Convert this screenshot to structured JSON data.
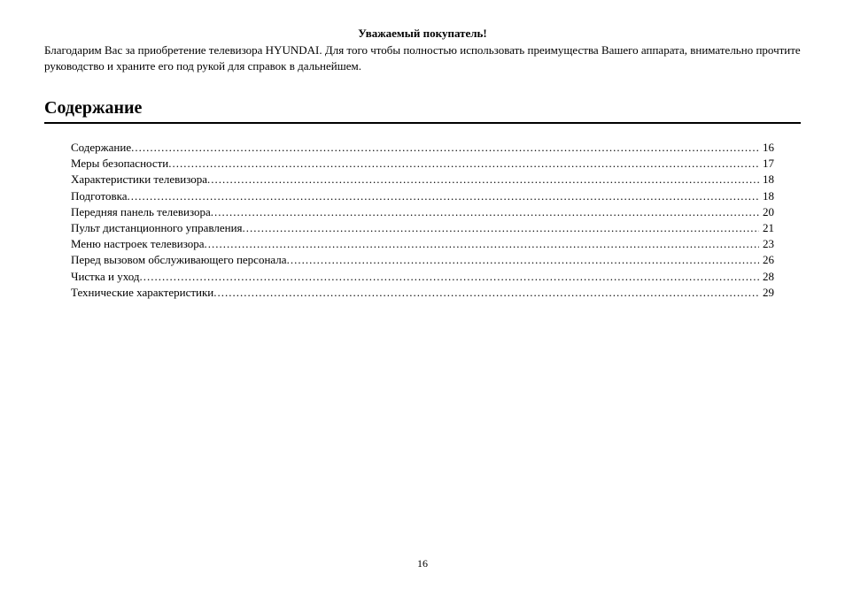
{
  "greeting": "Уважаемый покупатель!",
  "intro": "Благодарим Вас за приобретение телевизора HYUNDAI. Для того чтобы полностью использовать преимущества Вашего аппарата, внимательно прочтите руководство и храните его под рукой для справок в дальнейшем.",
  "heading": "Содержание",
  "toc": [
    {
      "title": "Содержание",
      "page": "16"
    },
    {
      "title": "Меры безопасности",
      "page": "17"
    },
    {
      "title": "Характеристики телевизора",
      "page": "18"
    },
    {
      "title": "Подготовка",
      "page": "18"
    },
    {
      "title": "Передняя панель телевизора",
      "page": "20"
    },
    {
      "title": "Пульт дистанционного управления",
      "page": "21"
    },
    {
      "title": "Меню настроек телевизора",
      "page": "23"
    },
    {
      "title": "Перед вызовом обслуживающего персонала",
      "page": "26"
    },
    {
      "title": "Чистка и уход",
      "page": "28"
    },
    {
      "title": "Технические характеристики",
      "page": "29"
    }
  ],
  "pageNumber": "16"
}
